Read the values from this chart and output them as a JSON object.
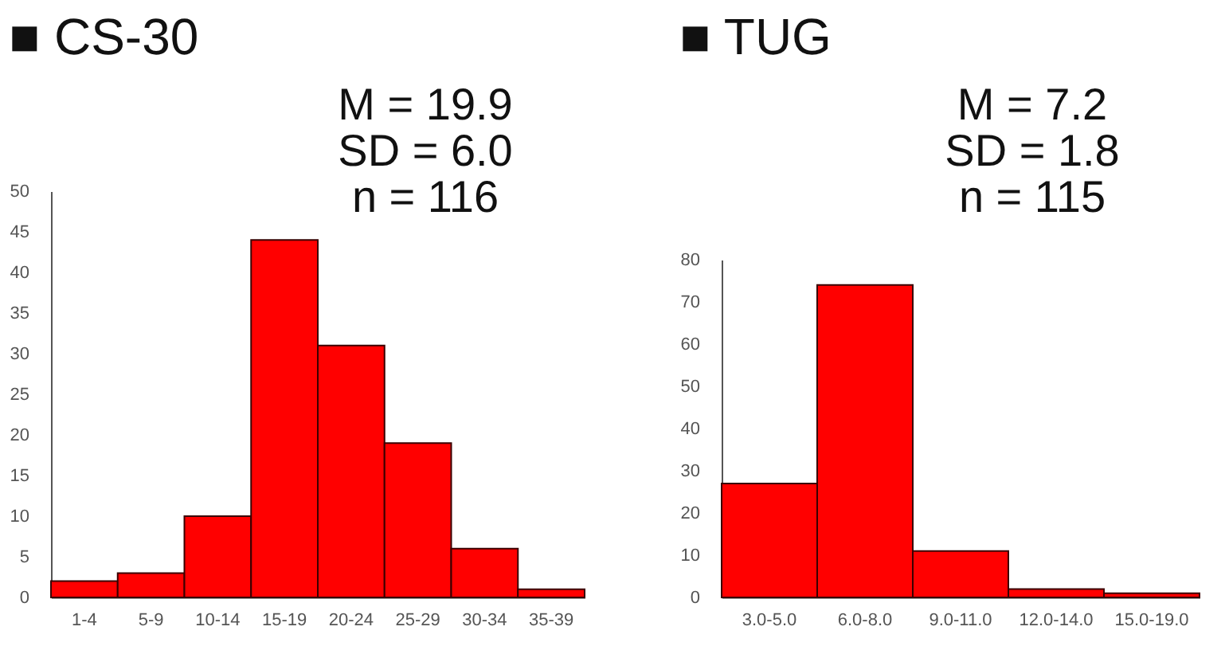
{
  "chart_data": [
    {
      "type": "bar",
      "title": "■ CS-30",
      "annotations": [
        "M = 19.9",
        "SD = 6.0",
        "n = 116"
      ],
      "categories": [
        "1-4",
        "5-9",
        "10-14",
        "15-19",
        "20-24",
        "25-29",
        "30-34",
        "35-39"
      ],
      "values": [
        2,
        3,
        10,
        44,
        31,
        19,
        6,
        1
      ],
      "color": "#ff0000",
      "ylim": [
        0,
        50
      ],
      "yticks": [
        0,
        5,
        10,
        15,
        20,
        25,
        30,
        35,
        40,
        45,
        50
      ],
      "grid": false
    },
    {
      "type": "bar",
      "title": "■ TUG",
      "annotations": [
        "M = 7.2",
        "SD = 1.8",
        "n = 115"
      ],
      "categories": [
        "3.0-5.0",
        "6.0-8.0",
        "9.0-11.0",
        "12.0-14.0",
        "15.0-19.0"
      ],
      "values": [
        27,
        74,
        11,
        2,
        1
      ],
      "color": "#ff0000",
      "ylim": [
        0,
        80
      ],
      "yticks": [
        0,
        10,
        20,
        30,
        40,
        50,
        60,
        70,
        80
      ],
      "grid": false
    }
  ]
}
